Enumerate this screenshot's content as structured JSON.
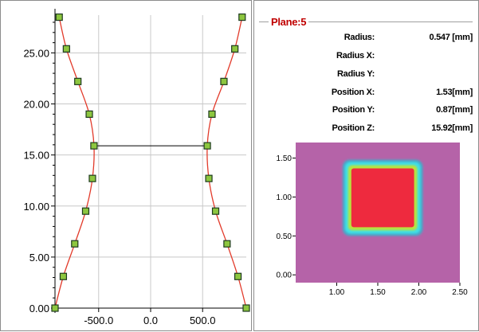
{
  "chart_data": [
    {
      "type": "line",
      "xlim": [
        -920,
        920
      ],
      "ylim": [
        0,
        28.7
      ],
      "xticks": [
        "-500.0",
        "0.0",
        "500.0"
      ],
      "xtick_values": [
        -500,
        0,
        500
      ],
      "yticks": [
        "0.00",
        "5.00",
        "10.00",
        "15.00",
        "20.00",
        "25.00"
      ],
      "ytick_values": [
        0,
        5,
        10,
        15,
        20,
        25
      ],
      "grid": true,
      "series": [
        {
          "points": [
            [
              -920,
              0.0
            ],
            [
              -840,
              3.1
            ],
            [
              -730,
              6.3
            ],
            [
              -625,
              9.5
            ],
            [
              -560,
              12.7
            ],
            [
              -545,
              15.9
            ],
            [
              -590,
              19.0
            ],
            [
              -700,
              22.2
            ],
            [
              -810,
              25.4
            ],
            [
              -880,
              28.5
            ]
          ]
        },
        {
          "points": [
            [
              920,
              0.0
            ],
            [
              840,
              3.1
            ],
            [
              735,
              6.3
            ],
            [
              625,
              9.5
            ],
            [
              560,
              12.7
            ],
            [
              545,
              15.9
            ],
            [
              590,
              19.0
            ],
            [
              705,
              22.2
            ],
            [
              810,
              25.4
            ],
            [
              880,
              28.5
            ]
          ]
        }
      ],
      "connector": [
        [
          -545,
          15.9
        ],
        [
          545,
          15.9
        ]
      ]
    },
    {
      "type": "heatmap",
      "xlim": [
        0.5,
        2.5
      ],
      "ylim": [
        -0.1,
        1.7
      ],
      "xticks": [
        "1.00",
        "1.50",
        "2.00",
        "2.50"
      ],
      "xtick_values": [
        1.0,
        1.5,
        2.0,
        2.5
      ],
      "yticks": [
        "0.00",
        "0.50",
        "1.00",
        "1.50"
      ],
      "ytick_values": [
        0.0,
        0.5,
        1.0,
        1.5
      ],
      "square": {
        "x0": 1.1,
        "x1": 2.02,
        "y0": 0.53,
        "y1": 1.45
      },
      "colors": {
        "background": "#b563a8",
        "outer": "#4aa7c8",
        "ring": "#3de0e8",
        "inner_ring": "#b9e23c",
        "core": "#ee2a3e"
      }
    }
  ],
  "info": {
    "title": "Plane:5",
    "rows": [
      {
        "label": "Radius:",
        "value": "0.547 [mm]"
      },
      {
        "label": "Radius X:",
        "value": ""
      },
      {
        "label": "Radius Y:",
        "value": ""
      },
      {
        "label": "Position X:",
        "value": "1.53[mm]"
      },
      {
        "label": "Position Y:",
        "value": "0.87[mm]"
      },
      {
        "label": "Position Z:",
        "value": "15.92[mm]"
      }
    ]
  },
  "colors": {
    "curve": "#e23a2a",
    "marker_fill": "#8dc63f",
    "marker_stroke": "#1e3a1e",
    "grid": "#c8c8c8",
    "title": "#c00000"
  }
}
